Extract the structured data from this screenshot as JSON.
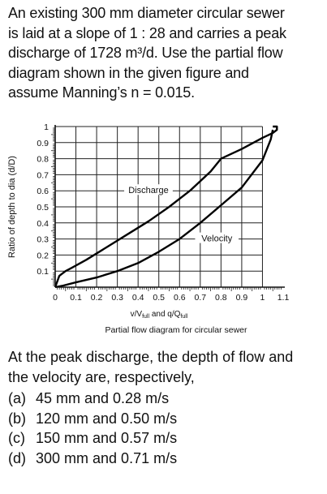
{
  "question": {
    "lines": [
      "An existing 300 mm diameter circular sewer",
      "is laid at a slope of 1 : 28 and carries a peak",
      "discharge of 1728 m³/d. Use the partial flow",
      "diagram shown in the given figure and",
      "assume Manning’s n = 0.015."
    ]
  },
  "chart_data": {
    "type": "line",
    "caption": "Partial flow diagram for circular sewer",
    "xlabel": "v/V_full and q/Q_full",
    "xlabel_parts": {
      "v": "v/V",
      "v_sub": "full",
      "and": " and q/Q",
      "q_sub": "full"
    },
    "ylabel": "Ratio of depth to dia (d/D)",
    "xlim": [
      0,
      1.1
    ],
    "ylim": [
      0,
      1
    ],
    "x_ticks": [
      "0",
      "0.1",
      "0.2",
      "0.3",
      "0.4",
      "0.5",
      "0.6",
      "0.7",
      "0.8",
      "0.9",
      "1",
      "1.1"
    ],
    "y_ticks": [
      "0.1",
      "0.2",
      "0.3",
      "0.4",
      "0.5",
      "0.6",
      "0.7",
      "0.8",
      "0.9",
      "1"
    ],
    "grid": true,
    "series": [
      {
        "name": "Discharge",
        "x": [
          0,
          0.02,
          0.05,
          0.08,
          0.15,
          0.25,
          0.35,
          0.45,
          0.55,
          0.65,
          0.75,
          0.8,
          0.9,
          1.0,
          1.05,
          1.07,
          1.07,
          1.05
        ],
        "y": [
          0,
          0.07,
          0.1,
          0.12,
          0.17,
          0.25,
          0.33,
          0.41,
          0.5,
          0.6,
          0.72,
          0.8,
          0.86,
          0.93,
          0.96,
          0.98,
          1.0,
          1.0
        ],
        "label_at": [
          0.45,
          0.6
        ]
      },
      {
        "name": "Velocity",
        "x": [
          0,
          0.04,
          0.1,
          0.2,
          0.3,
          0.4,
          0.5,
          0.6,
          0.7,
          0.8,
          0.9,
          1.0,
          1.04,
          1.05
        ],
        "y": [
          0,
          0.01,
          0.03,
          0.06,
          0.1,
          0.15,
          0.22,
          0.3,
          0.4,
          0.51,
          0.62,
          0.79,
          0.92,
          0.98
        ],
        "label_at": [
          0.78,
          0.3
        ]
      }
    ]
  },
  "answer_block": {
    "stem_lines": [
      "At the peak discharge, the depth of flow and",
      "the velocity are, respectively,"
    ],
    "options": [
      {
        "label": "(a)",
        "text": "45 mm and 0.28 m/s"
      },
      {
        "label": "(b)",
        "text": "120 mm and 0.50 m/s"
      },
      {
        "label": "(c)",
        "text": "150 mm and 0.57 m/s"
      },
      {
        "label": "(d)",
        "text": "300 mm and 0.71 m/s"
      }
    ]
  }
}
